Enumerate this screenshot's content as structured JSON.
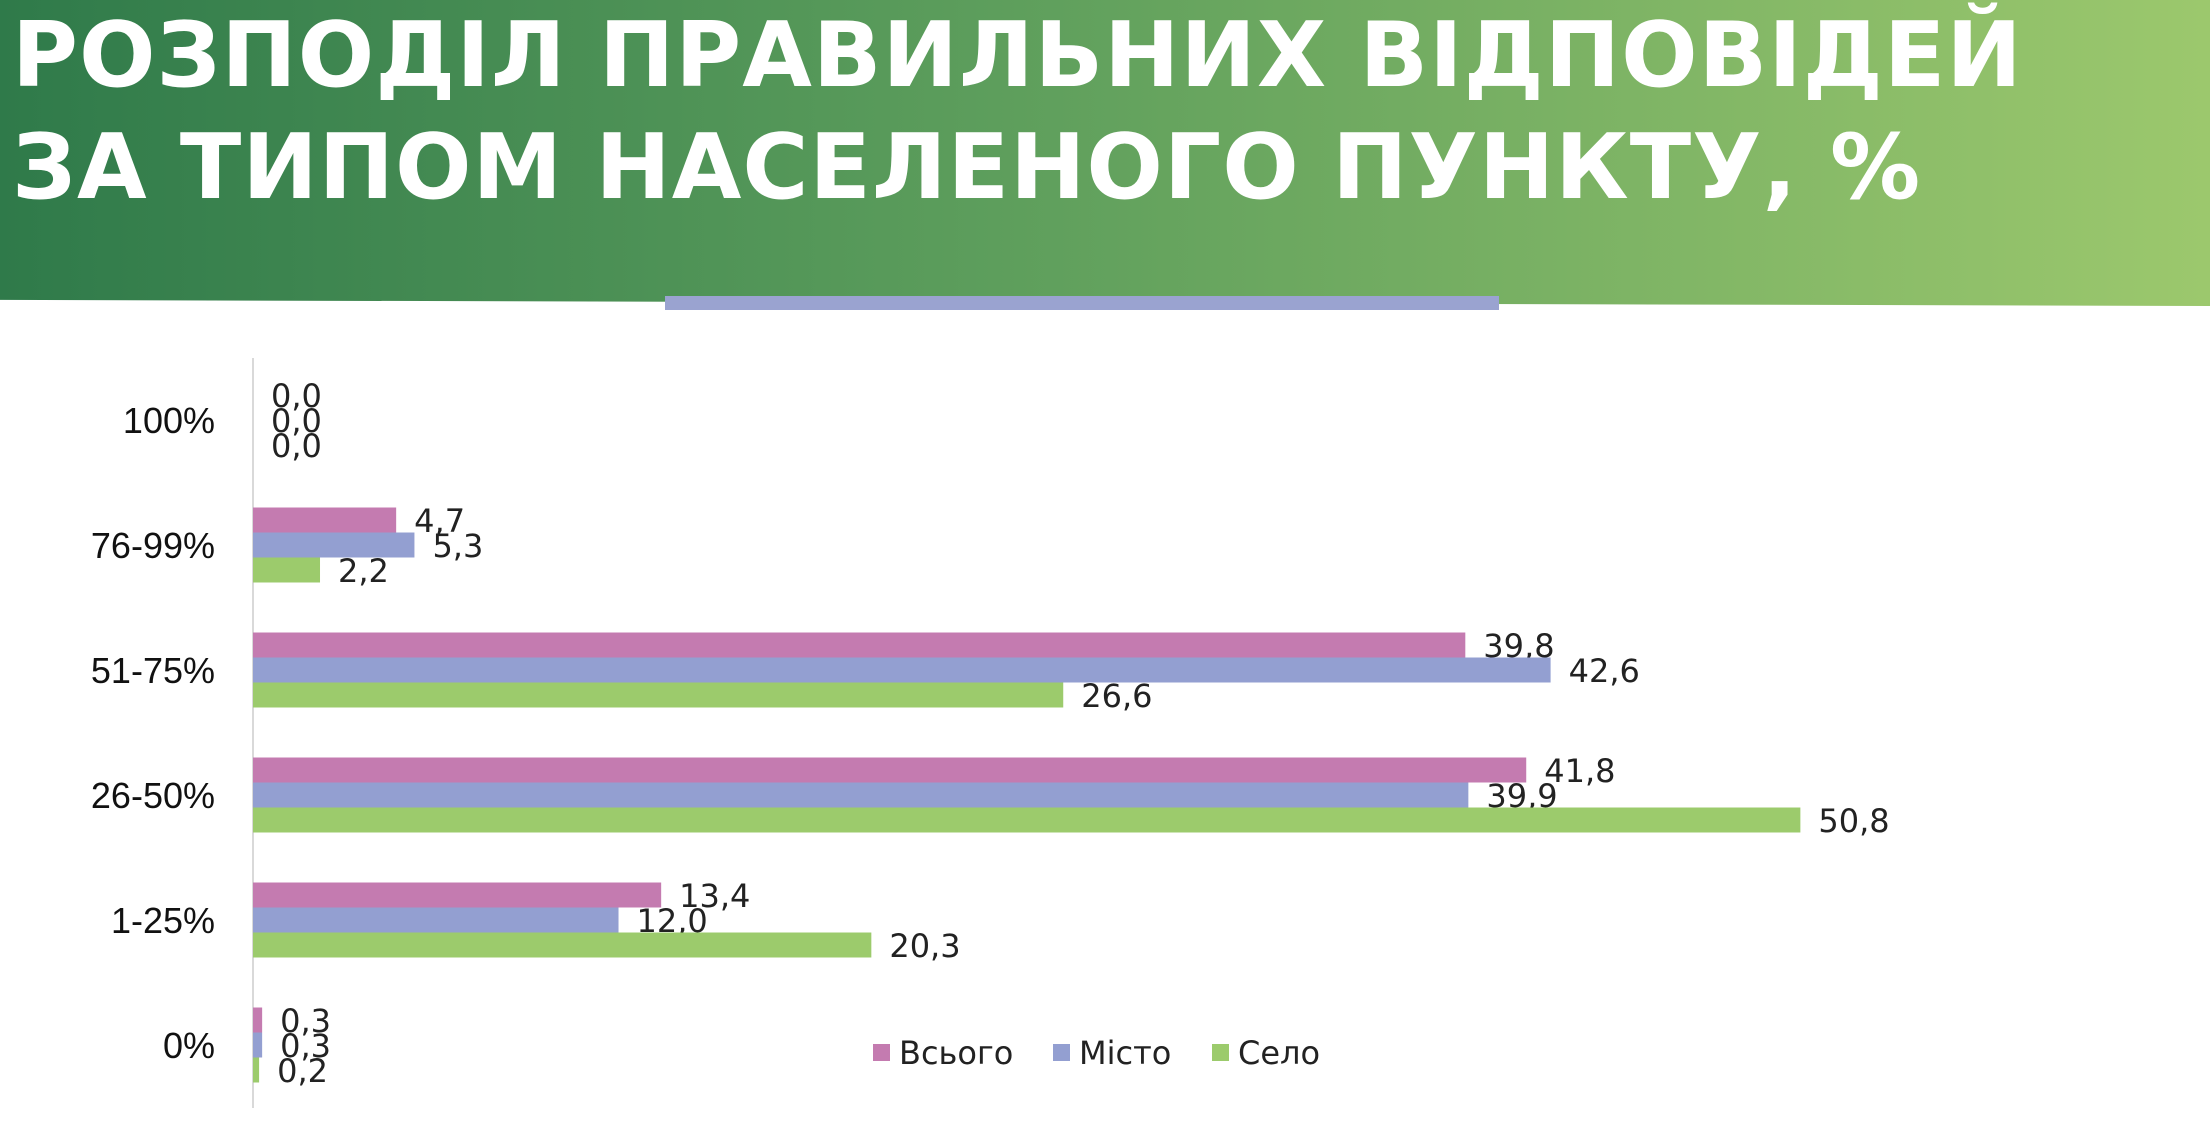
{
  "title": "РОЗПОДІЛ ПРАВИЛЬНИХ ВІДПОВІДЕЙ\nЗА ТИПОМ НАСЕЛЕНОГО ПУНКТУ, %",
  "colors": {
    "header_start": "#2f7a4a",
    "header_end": "#9cc86d",
    "accent": "#9aa3d0"
  },
  "chart_data": {
    "type": "bar",
    "orientation": "horizontal",
    "categories": [
      "100%",
      "76-99%",
      "51-75%",
      "26-50%",
      "1-25%",
      "0%"
    ],
    "series": [
      {
        "name": "Всього",
        "color": "#c47bb0",
        "values": [
          0.0,
          4.7,
          39.8,
          41.8,
          13.4,
          0.3
        ],
        "labels": [
          "0,0",
          "4,7",
          "39,8",
          "41,8",
          "13,4",
          "0,3"
        ]
      },
      {
        "name": "Місто",
        "color": "#939fd1",
        "values": [
          0.0,
          5.3,
          42.6,
          39.9,
          12.0,
          0.3
        ],
        "labels": [
          "0,0",
          "5,3",
          "42,6",
          "39,9",
          "12,0",
          "0,3"
        ]
      },
      {
        "name": "Село",
        "color": "#9ccb6c",
        "values": [
          0.0,
          2.2,
          26.6,
          50.8,
          20.3,
          0.2
        ],
        "labels": [
          "0,0",
          "2,2",
          "26,6",
          "50,8",
          "20,3",
          "0,2"
        ]
      }
    ],
    "xlim": [
      0,
      55
    ],
    "grid": false,
    "legend_position": "bottom"
  }
}
